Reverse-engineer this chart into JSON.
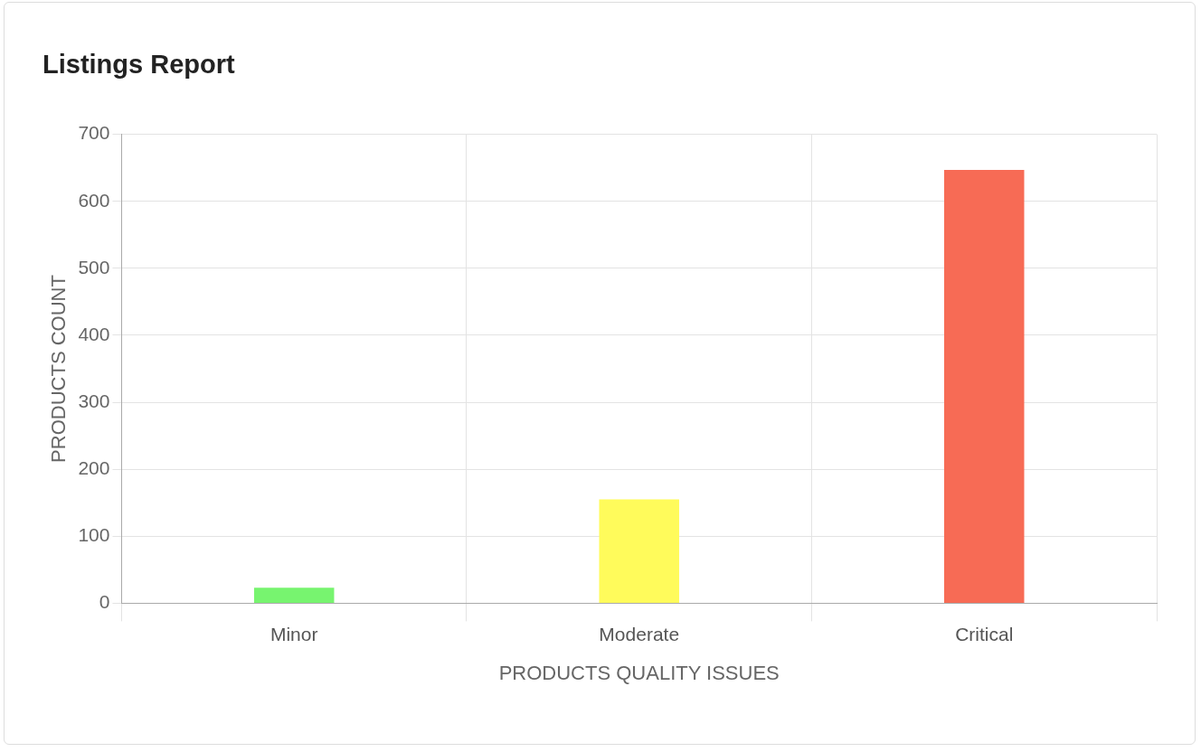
{
  "chart_data": {
    "type": "bar",
    "title": "Listings Report",
    "xlabel": "PRODUCTS QUALITY ISSUES",
    "ylabel": "PRODUCTS COUNT",
    "categories": [
      "Minor",
      "Moderate",
      "Critical"
    ],
    "values": [
      23,
      155,
      647
    ],
    "colors": [
      "#77f46f",
      "#fffb5b",
      "#f76b55"
    ],
    "ylim": [
      0,
      700
    ],
    "yticks": [
      0,
      100,
      200,
      300,
      400,
      500,
      600,
      700
    ],
    "grid": true,
    "legend": false
  }
}
